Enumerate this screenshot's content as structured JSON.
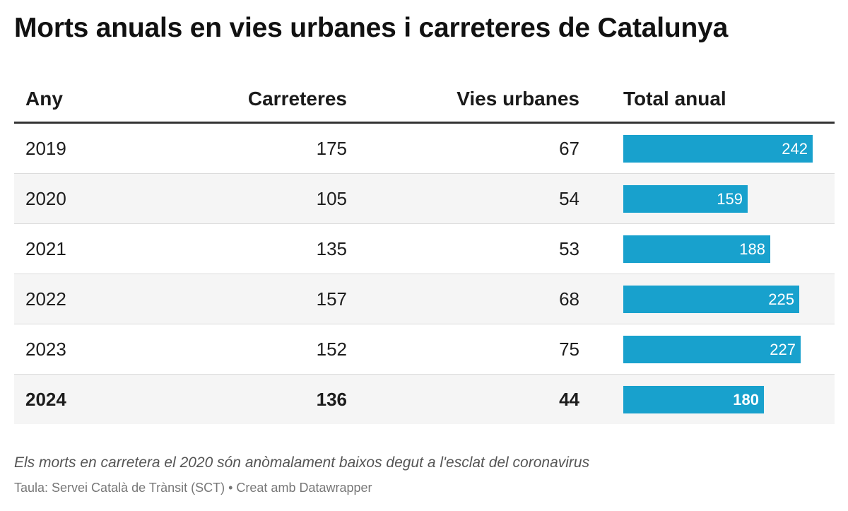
{
  "title": "Morts anuals en vies urbanes i carreteres de Catalunya",
  "chart_data": {
    "type": "table",
    "title": "Morts anuals en vies urbanes i carreteres de Catalunya",
    "columns": [
      "Any",
      "Carreteres",
      "Vies urbanes",
      "Total anual"
    ],
    "rows": [
      {
        "year": "2019",
        "roads": 175,
        "urban": 67,
        "total": 242
      },
      {
        "year": "2020",
        "roads": 105,
        "urban": 54,
        "total": 159
      },
      {
        "year": "2021",
        "roads": 135,
        "urban": 53,
        "total": 188
      },
      {
        "year": "2022",
        "roads": 157,
        "urban": 68,
        "total": 225
      },
      {
        "year": "2023",
        "roads": 152,
        "urban": 75,
        "total": 227
      },
      {
        "year": "2024",
        "roads": 136,
        "urban": 44,
        "total": 180,
        "highlight": true
      }
    ],
    "bar_column": "Total anual",
    "bar_color": "#18a1cd"
  },
  "note": "Els morts en carretera el 2020 són anòmalament baixos degut a l'esclat del coronavirus",
  "source": "Taula: Servei Català de Trànsit (SCT) • Creat amb Datawrapper"
}
